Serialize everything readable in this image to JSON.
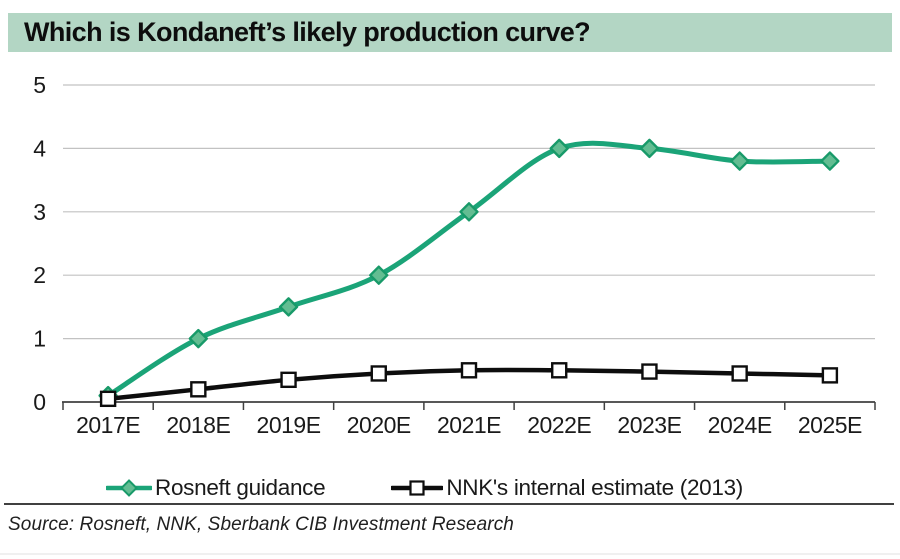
{
  "header": {
    "title": "Which is Kondaneft’s likely production curve?",
    "bg_color": "#b3d6c4"
  },
  "chart_data": {
    "type": "line",
    "smoothed": true,
    "categories": [
      "2017E",
      "2018E",
      "2019E",
      "2020E",
      "2021E",
      "2022E",
      "2023E",
      "2024E",
      "2025E"
    ],
    "series": [
      {
        "name": "Rosneft guidance",
        "values": [
          0.1,
          1.0,
          1.5,
          2.0,
          3.0,
          4.0,
          4.0,
          3.8,
          3.8
        ],
        "color": "#1ba478",
        "marker": "diamond",
        "marker_fill": "#63bd92",
        "marker_stroke": "#189a69"
      },
      {
        "name": "NNK's internal estimate (2013)",
        "values": [
          0.05,
          0.2,
          0.35,
          0.45,
          0.5,
          0.5,
          0.48,
          0.45,
          0.42
        ],
        "color": "#0d0d0d",
        "marker": "square",
        "marker_fill": "#ffffff",
        "marker_stroke": "#0d0d0d"
      }
    ],
    "ylim": [
      0,
      5
    ],
    "yticks": [
      0,
      1,
      2,
      3,
      4,
      5
    ],
    "grid": "horizontal",
    "gridline_color": "#c2c2c2",
    "axis_color": "#404040",
    "label_color": "#1a1a1a",
    "legend_position": "bottom",
    "title": "Which is Kondaneft’s likely production curve?"
  },
  "footer": {
    "source": "Source: Rosneft, NNK, Sberbank CIB Investment Research"
  }
}
